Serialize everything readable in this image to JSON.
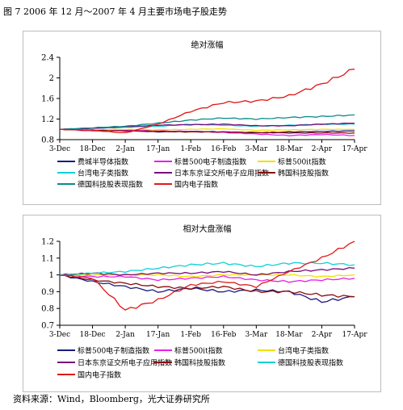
{
  "figure_title": "图 7 2006 年 12 月～2007 年 4 月主要市场电子股走势",
  "footer": "资料来源：Wind，Bloomberg，光大证券研究所",
  "colors": {
    "navy": "#1a1a80",
    "magenta": "#e81ee8",
    "yellow": "#f0e000",
    "turquoise": "#10d0d8",
    "purple": "#7a0a7a",
    "darkred": "#8a0d0d",
    "teal": "#0a8a8a",
    "red": "#e01818"
  },
  "chart_data": [
    {
      "type": "line",
      "title": "绝对涨幅",
      "x": [
        "3-Dec",
        "18-Dec",
        "2-Jan",
        "17-Jan",
        "1-Feb",
        "16-Feb",
        "3-Mar",
        "18-Mar",
        "2-Apr",
        "17-Apr"
      ],
      "xlabels": [
        "3-Dec",
        "18-Dec",
        "2-Jan",
        "17-Jan",
        "1-Feb",
        "16-Feb",
        "3-Mar",
        "18-Mar",
        "2-Apr",
        "17-Apr"
      ],
      "ylim": [
        0.8,
        2.4
      ],
      "yticks": [
        0.8,
        1.2,
        1.6,
        2,
        2.4
      ],
      "ytick_labels": [
        "0.8",
        "1.2",
        "1.6",
        "2",
        "2.4"
      ],
      "legend": {
        "columns": 3,
        "entries": [
          {
            "label": "费城半导体指数",
            "color": "#1a1a80"
          },
          {
            "label": "标普500电子制造指数",
            "color": "#e81ee8"
          },
          {
            "label": "标普500it指数",
            "color": "#f0e000"
          },
          {
            "label": "台湾电子类指数",
            "color": "#10d0d8"
          },
          {
            "label": "日本东京证交所电子应用指数",
            "color": "#7a0a7a"
          },
          {
            "label": "韩国科技股指数",
            "color": "#8a0d0d"
          },
          {
            "label": "德国科技股表现指数",
            "color": "#0a8a8a"
          },
          {
            "label": "国内电子指数",
            "color": "#e01818"
          }
        ]
      },
      "series": [
        {
          "name": "费城半导体指数",
          "color": "#1a1a80",
          "values": [
            1.0,
            0.99,
            0.98,
            0.95,
            0.96,
            0.95,
            0.93,
            0.95,
            0.96,
            0.97
          ]
        },
        {
          "name": "标普500电子制造指数",
          "color": "#e81ee8",
          "values": [
            1.0,
            0.97,
            0.99,
            0.97,
            0.96,
            0.94,
            0.91,
            0.88,
            0.9,
            0.88
          ]
        },
        {
          "name": "标普500it指数",
          "color": "#f0e000",
          "values": [
            1.0,
            0.99,
            1.0,
            0.99,
            1.0,
            1.01,
            0.98,
            0.99,
            1.0,
            1.0
          ]
        },
        {
          "name": "台湾电子类指数",
          "color": "#10d0d8",
          "values": [
            1.0,
            1.02,
            1.04,
            1.06,
            1.1,
            1.08,
            1.06,
            1.08,
            1.1,
            1.1
          ]
        },
        {
          "name": "日本东京证交所电子应用指数",
          "color": "#7a0a7a",
          "values": [
            1.0,
            1.02,
            1.05,
            1.08,
            1.09,
            1.1,
            1.07,
            1.07,
            1.1,
            1.12
          ]
        },
        {
          "name": "韩国科技股指数",
          "color": "#8a0d0d",
          "values": [
            1.0,
            0.98,
            0.97,
            0.96,
            0.95,
            0.95,
            0.94,
            0.93,
            0.93,
            0.93
          ]
        },
        {
          "name": "德国科技股表现指数",
          "color": "#0a8a8a",
          "values": [
            1.0,
            1.03,
            1.06,
            1.12,
            1.18,
            1.22,
            1.2,
            1.23,
            1.25,
            1.28
          ]
        },
        {
          "name": "国内电子指数",
          "color": "#e01818",
          "values": [
            1.0,
            0.98,
            0.93,
            1.1,
            1.35,
            1.52,
            1.55,
            1.65,
            1.88,
            2.17
          ]
        }
      ]
    },
    {
      "type": "line",
      "title": "相对大盘涨幅",
      "x": [
        "3-Dec",
        "18-Dec",
        "2-Jan",
        "17-Jan",
        "1-Feb",
        "16-Feb",
        "3-Mar",
        "18-Mar",
        "2-Apr",
        "17-Apr"
      ],
      "xlabels": [
        "3-Dec",
        "18-Dec",
        "2-Jan",
        "17-Jan",
        "1-Feb",
        "16-Feb",
        "3-Mar",
        "18-Mar",
        "2-Apr",
        "17-Apr"
      ],
      "ylim": [
        0.7,
        1.2
      ],
      "yticks": [
        0.7,
        0.8,
        0.9,
        1.0,
        1.1,
        1.2
      ],
      "ytick_labels": [
        "0.7",
        "0.8",
        "0.9",
        "1",
        "1.1",
        "1.2"
      ],
      "legend": {
        "columns": 3,
        "entries": [
          {
            "label": "标普500电子制造指数",
            "color": "#1a1a80"
          },
          {
            "label": "标普500it指数",
            "color": "#e81ee8"
          },
          {
            "label": "台湾电子类指数",
            "color": "#f0e000"
          },
          {
            "label": "日本东京证交所电子应用指数",
            "color": "#7a0a7a"
          },
          {
            "label": "韩国科技股指数",
            "color": "#8a0d0d"
          },
          {
            "label": "德国科技股表现指数",
            "color": "#10d0d8"
          },
          {
            "label": "国内电子指数",
            "color": "#e01818"
          }
        ]
      },
      "series": [
        {
          "name": "标普500电子制造指数",
          "color": "#1a1a80",
          "values": [
            1.0,
            0.96,
            0.93,
            0.9,
            0.92,
            0.9,
            0.91,
            0.9,
            0.84,
            0.87
          ]
        },
        {
          "name": "标普500it指数",
          "color": "#e81ee8",
          "values": [
            1.0,
            0.99,
            0.99,
            0.97,
            0.98,
            0.99,
            0.97,
            0.96,
            0.97,
            0.98
          ]
        },
        {
          "name": "台湾电子类指数",
          "color": "#f0e000",
          "values": [
            1.0,
            1.0,
            1.0,
            1.0,
            0.99,
            1.0,
            1.0,
            1.0,
            0.99,
            1.0
          ]
        },
        {
          "name": "日本东京证交所电子应用指数",
          "color": "#7a0a7a",
          "values": [
            1.0,
            1.01,
            1.0,
            1.01,
            1.01,
            1.02,
            1.0,
            1.02,
            1.03,
            1.04
          ]
        },
        {
          "name": "韩国科技股指数",
          "color": "#8a0d0d",
          "values": [
            1.0,
            0.97,
            0.95,
            0.93,
            0.92,
            0.93,
            0.9,
            0.9,
            0.88,
            0.87
          ]
        },
        {
          "name": "德国科技股表现指数",
          "color": "#10d0d8",
          "values": [
            1.0,
            1.01,
            1.02,
            1.04,
            1.06,
            1.07,
            1.05,
            1.07,
            1.07,
            1.06
          ]
        },
        {
          "name": "国内电子指数",
          "color": "#e01818",
          "values": [
            1.0,
            0.98,
            0.79,
            0.85,
            0.94,
            0.96,
            0.93,
            1.02,
            1.1,
            1.2
          ]
        }
      ]
    }
  ]
}
